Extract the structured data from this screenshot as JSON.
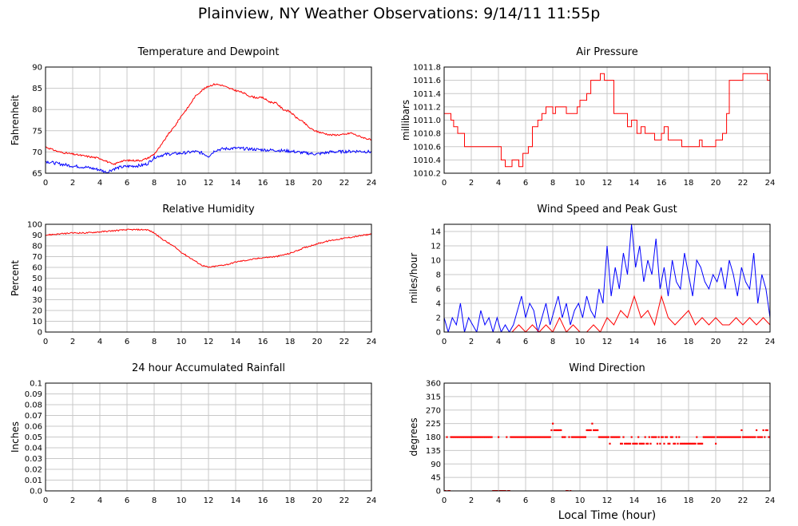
{
  "page": {
    "title": "Plainview, NY Weather Observations: 9/14/11 11:55p",
    "x_label": "Local Time (hour)"
  },
  "colors": {
    "primary_series": "#ff0000",
    "secondary_series": "#0000ff",
    "grid": "#c8c8c8",
    "frame": "#000000"
  },
  "chart_data": [
    {
      "id": "temperature",
      "type": "line",
      "title": "Temperature and Dewpoint",
      "ylabel": "Fahrenheit",
      "xlabel": "",
      "xlim": [
        0,
        24
      ],
      "ylim": [
        65,
        90
      ],
      "x_ticks": [
        0,
        2,
        4,
        6,
        8,
        10,
        12,
        14,
        16,
        18,
        20,
        22,
        24
      ],
      "y_ticks": [
        "65",
        "70",
        "75",
        "80",
        "85",
        "90"
      ],
      "grid": true,
      "series": [
        {
          "color": "#ff0000",
          "noise": 0.2,
          "x": [
            0,
            1,
            2,
            3,
            4,
            4.5,
            5,
            5.5,
            6,
            7,
            7.5,
            8,
            8.5,
            9,
            9.5,
            10,
            10.5,
            11,
            11.5,
            12,
            12.5,
            13,
            13.5,
            14,
            14.5,
            15,
            15.5,
            16,
            16.5,
            17,
            17.5,
            18,
            18.5,
            19,
            19.5,
            20,
            21,
            22,
            22.5,
            23,
            24
          ],
          "y": [
            71.2,
            70.0,
            69.5,
            69.0,
            68.5,
            67.8,
            67.0,
            67.8,
            68.0,
            68.0,
            68.5,
            69.5,
            71.5,
            74.0,
            76.0,
            78.5,
            80.5,
            83.0,
            84.5,
            85.5,
            86.0,
            85.7,
            85.0,
            84.5,
            84.0,
            83.2,
            82.8,
            82.8,
            81.8,
            81.5,
            80.0,
            79.5,
            78.0,
            77.0,
            75.5,
            74.8,
            74.0,
            74.1,
            74.5,
            73.8,
            72.8
          ]
        },
        {
          "color": "#0000ff",
          "noise": 0.35,
          "x": [
            0,
            1,
            2,
            3,
            4,
            4.5,
            5,
            5.5,
            6,
            7,
            7.5,
            8,
            8.5,
            9,
            10,
            11,
            11.5,
            12,
            12.5,
            13,
            14,
            15,
            16,
            17,
            18,
            19,
            20,
            21,
            22,
            23,
            24
          ],
          "y": [
            67.8,
            67.2,
            66.7,
            66.4,
            65.8,
            65.2,
            66.0,
            66.4,
            66.6,
            66.8,
            67.2,
            68.7,
            69.2,
            69.5,
            69.7,
            70.1,
            69.8,
            69.0,
            70.4,
            70.7,
            70.9,
            70.7,
            70.5,
            70.4,
            70.2,
            69.8,
            69.5,
            70.0,
            70.1,
            70.2,
            70.0
          ]
        }
      ]
    },
    {
      "id": "pressure",
      "type": "line",
      "title": "Air Pressure",
      "ylabel": "millibars",
      "xlabel": "",
      "xlim": [
        0,
        24
      ],
      "ylim": [
        1010.2,
        1011.8
      ],
      "x_ticks": [
        0,
        2,
        4,
        6,
        8,
        10,
        12,
        14,
        16,
        18,
        20,
        22,
        24
      ],
      "y_ticks": [
        "1010.2",
        "1010.4",
        "1010.6",
        "1010.8",
        "1011.0",
        "1011.2",
        "1011.4",
        "1011.6",
        "1011.8"
      ],
      "grid": true,
      "series": [
        {
          "color": "#ff0000",
          "step": true,
          "x": [
            0,
            0.5,
            0.7,
            1.0,
            1.5,
            3.8,
            4.2,
            4.5,
            5.0,
            5.5,
            5.8,
            6.2,
            6.5,
            6.9,
            7.2,
            7.5,
            8.0,
            8.2,
            8.5,
            9.0,
            9.5,
            9.8,
            10.0,
            10.5,
            10.8,
            11.5,
            11.8,
            12.5,
            13.0,
            13.5,
            13.8,
            14.2,
            14.5,
            14.8,
            15.5,
            16.0,
            16.2,
            16.5,
            17.0,
            17.5,
            18.2,
            18.8,
            19.0,
            19.5,
            20.0,
            20.5,
            20.8,
            21.0,
            22.0,
            23.5,
            23.8,
            24
          ],
          "y": [
            1011.1,
            1011.0,
            1010.9,
            1010.8,
            1010.6,
            1010.6,
            1010.4,
            1010.3,
            1010.4,
            1010.3,
            1010.5,
            1010.6,
            1010.9,
            1011.0,
            1011.1,
            1011.2,
            1011.1,
            1011.2,
            1011.2,
            1011.1,
            1011.1,
            1011.2,
            1011.3,
            1011.4,
            1011.6,
            1011.7,
            1011.6,
            1011.1,
            1011.1,
            1010.9,
            1011.0,
            1010.8,
            1010.9,
            1010.8,
            1010.7,
            1010.8,
            1010.9,
            1010.7,
            1010.7,
            1010.6,
            1010.6,
            1010.7,
            1010.6,
            1010.6,
            1010.7,
            1010.8,
            1011.1,
            1011.6,
            1011.7,
            1011.7,
            1011.6,
            1011.7
          ]
        }
      ]
    },
    {
      "id": "humidity",
      "type": "line",
      "title": "Relative Humidity",
      "ylabel": "Percent",
      "xlabel": "",
      "xlim": [
        0,
        24
      ],
      "ylim": [
        0,
        100
      ],
      "x_ticks": [
        0,
        2,
        4,
        6,
        8,
        10,
        12,
        14,
        16,
        18,
        20,
        22,
        24
      ],
      "y_ticks": [
        "0",
        "10",
        "20",
        "30",
        "40",
        "50",
        "60",
        "70",
        "80",
        "90",
        "100"
      ],
      "grid": true,
      "series": [
        {
          "color": "#ff0000",
          "noise": 0.6,
          "x": [
            0,
            1,
            2,
            3,
            4,
            5,
            6,
            7,
            7.5,
            8,
            8.5,
            9,
            9.5,
            10,
            10.5,
            11,
            11.5,
            12,
            12.5,
            13,
            13.5,
            14,
            15,
            16,
            17,
            18,
            19,
            20,
            21,
            22,
            23,
            24
          ],
          "y": [
            90,
            91,
            92,
            92,
            93,
            94,
            95,
            95,
            95,
            92,
            87,
            83,
            79,
            74,
            70,
            66,
            62,
            60,
            61,
            62,
            63,
            65,
            67,
            69,
            70,
            73,
            78,
            82,
            85,
            87,
            89,
            91
          ]
        }
      ]
    },
    {
      "id": "wind",
      "type": "line",
      "title": "Wind Speed and Peak Gust",
      "ylabel": "miles/hour",
      "xlabel": "",
      "xlim": [
        0,
        24
      ],
      "ylim": [
        0,
        15
      ],
      "x_ticks": [
        0,
        2,
        4,
        6,
        8,
        10,
        12,
        14,
        16,
        18,
        20,
        22,
        24
      ],
      "y_ticks": [
        "0",
        "2",
        "4",
        "6",
        "8",
        "10",
        "12",
        "14"
      ],
      "grid": true,
      "series": [
        {
          "color": "#0000ff",
          "x": [
            0,
            0.3,
            0.6,
            0.9,
            1.2,
            1.5,
            1.8,
            2.1,
            2.4,
            2.7,
            3.0,
            3.3,
            3.6,
            3.9,
            4.2,
            4.5,
            4.8,
            5.1,
            5.4,
            5.7,
            6.0,
            6.3,
            6.6,
            6.9,
            7.2,
            7.5,
            7.8,
            8.1,
            8.4,
            8.7,
            9.0,
            9.3,
            9.6,
            9.9,
            10.2,
            10.5,
            10.8,
            11.1,
            11.4,
            11.7,
            12.0,
            12.3,
            12.6,
            12.9,
            13.2,
            13.5,
            13.8,
            14.1,
            14.4,
            14.7,
            15.0,
            15.3,
            15.6,
            15.9,
            16.2,
            16.5,
            16.8,
            17.1,
            17.4,
            17.7,
            18.0,
            18.3,
            18.6,
            18.9,
            19.2,
            19.5,
            19.8,
            20.1,
            20.4,
            20.7,
            21.0,
            21.3,
            21.6,
            21.9,
            22.2,
            22.5,
            22.8,
            23.1,
            23.4,
            23.7,
            24.0
          ],
          "y": [
            2,
            0,
            2,
            1,
            4,
            0,
            2,
            1,
            0,
            3,
            1,
            2,
            0,
            2,
            0,
            1,
            0,
            1,
            3,
            5,
            2,
            4,
            3,
            0,
            2,
            4,
            1,
            3,
            5,
            2,
            4,
            1,
            3,
            4,
            2,
            5,
            3,
            2,
            6,
            4,
            12,
            5,
            9,
            6,
            11,
            8,
            15,
            9,
            12,
            7,
            10,
            8,
            13,
            6,
            9,
            5,
            10,
            7,
            6,
            11,
            8,
            5,
            10,
            9,
            7,
            6,
            8,
            7,
            9,
            6,
            10,
            8,
            5,
            9,
            7,
            6,
            11,
            4,
            8,
            6,
            2
          ]
        },
        {
          "color": "#ff0000",
          "x": [
            0,
            0.5,
            1.0,
            1.5,
            2.0,
            2.5,
            3.0,
            3.5,
            4.0,
            4.5,
            5.0,
            5.5,
            6.0,
            6.5,
            7.0,
            7.5,
            8.0,
            8.5,
            9.0,
            9.5,
            10.0,
            10.5,
            11.0,
            11.5,
            12.0,
            12.5,
            13.0,
            13.5,
            14.0,
            14.5,
            15.0,
            15.5,
            16.0,
            16.5,
            17.0,
            17.5,
            18.0,
            18.5,
            19.0,
            19.5,
            20.0,
            20.5,
            21.0,
            21.5,
            22.0,
            22.5,
            23.0,
            23.5,
            24.0
          ],
          "y": [
            0,
            0,
            0,
            0,
            0,
            0,
            0,
            0,
            0,
            0,
            0,
            1,
            0,
            1,
            0,
            1,
            0,
            2,
            0,
            1,
            0,
            0,
            1,
            0,
            2,
            1,
            3,
            2,
            5,
            2,
            3,
            1,
            5,
            2,
            1,
            2,
            3,
            1,
            2,
            1,
            2,
            1,
            1,
            2,
            1,
            2,
            1,
            2,
            1
          ]
        }
      ]
    },
    {
      "id": "rain",
      "type": "line",
      "title": "24 hour Accumulated Rainfall",
      "ylabel": "Inches",
      "xlabel": "",
      "xlim": [
        0,
        24
      ],
      "ylim": [
        0,
        0.1
      ],
      "x_ticks": [
        0,
        2,
        4,
        6,
        8,
        10,
        12,
        14,
        16,
        18,
        20,
        22,
        24
      ],
      "y_ticks": [
        "0.0",
        "0.01",
        "0.02",
        "0.03",
        "0.04",
        "0.05",
        "0.06",
        "0.07",
        "0.08",
        "0.09",
        "0.1"
      ],
      "grid": true,
      "series": [
        {
          "color": "#ff0000",
          "x": [
            0,
            24
          ],
          "y": [
            0,
            0
          ]
        }
      ]
    },
    {
      "id": "direction",
      "type": "scatter",
      "title": "Wind Direction",
      "ylabel": "degrees",
      "xlabel": "Local Time (hour)",
      "xlim": [
        0,
        24
      ],
      "ylim": [
        0,
        360
      ],
      "x_ticks": [
        0,
        2,
        4,
        6,
        8,
        10,
        12,
        14,
        16,
        18,
        20,
        22,
        24
      ],
      "y_ticks": [
        "0",
        "45",
        "90",
        "135",
        "180",
        "225",
        "270",
        "315",
        "360"
      ],
      "grid": true,
      "series": [
        {
          "color": "#ff0000",
          "marker": "point",
          "step": 0.1,
          "segments": [
            {
              "from": 0.0,
              "to": 0.6,
              "y": 0,
              "alt": 180
            },
            {
              "from": 0.6,
              "to": 3.6,
              "y": 180
            },
            {
              "from": 3.6,
              "to": 4.9,
              "y": 0,
              "alt": 180
            },
            {
              "from": 4.9,
              "to": 7.9,
              "y": 180
            },
            {
              "from": 7.9,
              "to": 8.7,
              "y": 203,
              "alt": 225
            },
            {
              "from": 8.7,
              "to": 9.3,
              "y": 180,
              "alt": 0
            },
            {
              "from": 9.3,
              "to": 10.5,
              "y": 180,
              "alt": 0
            },
            {
              "from": 10.5,
              "to": 11.4,
              "y": 203,
              "alt": 225
            },
            {
              "from": 11.4,
              "to": 13.0,
              "y": 180,
              "alt": 158
            },
            {
              "from": 13.0,
              "to": 15.0,
              "y": 158,
              "alt": 180
            },
            {
              "from": 15.0,
              "to": 16.5,
              "y": 180,
              "alt": 158
            },
            {
              "from": 16.5,
              "to": 18.8,
              "y": 158,
              "alt": 180
            },
            {
              "from": 18.8,
              "to": 21.0,
              "y": 180,
              "alt": 158
            },
            {
              "from": 21.0,
              "to": 24.0,
              "y": 180,
              "alt": 203
            }
          ]
        }
      ]
    }
  ]
}
